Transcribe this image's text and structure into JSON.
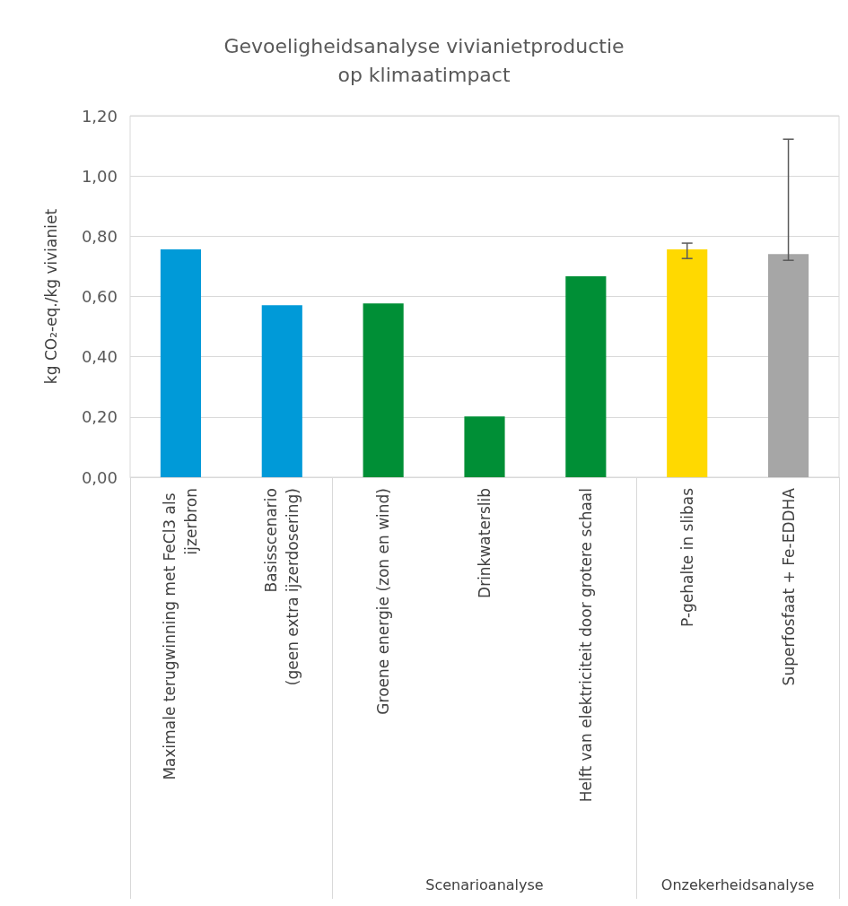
{
  "chart_data": {
    "type": "bar",
    "title": "Gevoeligheidsanalyse vivianietproductie\nop klimaatimpact",
    "ylabel": "kg CO₂-eq./kg vivianiet",
    "categories": [
      "Maximale terugwinning met FeCl3 als ijzerbron",
      "Basisscenario\n(geen extra ijzerdosering)",
      "Groene energie (zon en wind)",
      "Drinkwaterslib",
      "Helft van elektriciteit door grotere schaal",
      "P-gehalte in slibas",
      "Superfosfaat + Fe-EDDHA"
    ],
    "values": [
      0.756,
      0.571,
      0.577,
      0.202,
      0.667,
      0.756,
      0.741
    ],
    "colors": [
      "#009ad8",
      "#009ad8",
      "#008f36",
      "#008f36",
      "#008f36",
      "#ffd900",
      "#a6a6a6"
    ],
    "errors": [
      null,
      null,
      null,
      null,
      null,
      [
        0.726,
        0.777
      ],
      [
        0.72,
        1.122
      ]
    ],
    "ylim": [
      0,
      1.2
    ],
    "yticks": [
      {
        "value": 0,
        "label": "0,00"
      },
      {
        "value": 0.2,
        "label": "0,20"
      },
      {
        "value": 0.4,
        "label": "0,40"
      },
      {
        "value": 0.6,
        "label": "0,60"
      },
      {
        "value": 0.8,
        "label": "0,80"
      },
      {
        "value": 1,
        "label": "1,00"
      },
      {
        "value": 1.2,
        "label": "1,20"
      }
    ],
    "grid": "y",
    "annotations": [
      "Scenarioanalyse",
      "Onzekerheidsanalyse"
    ]
  }
}
